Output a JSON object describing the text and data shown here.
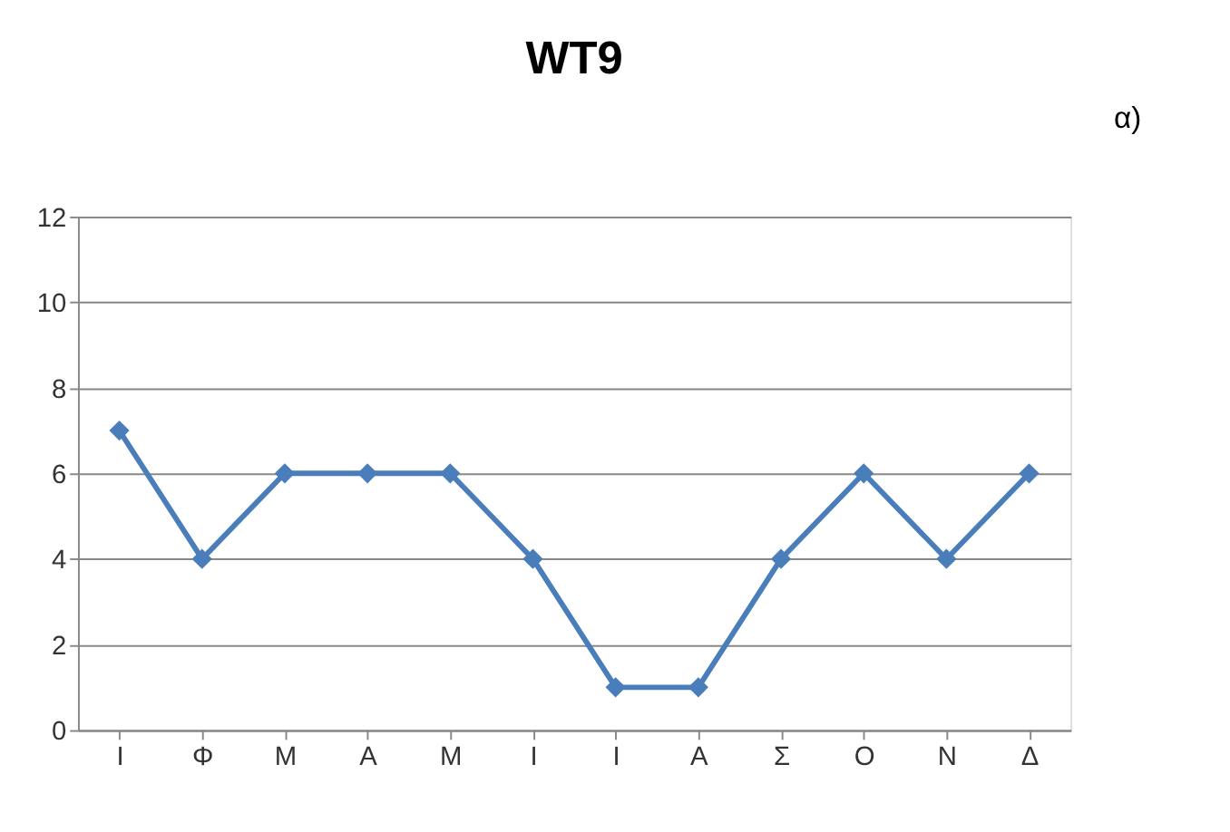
{
  "chart_data": {
    "type": "line",
    "title": "WT9",
    "categories": [
      "Ι",
      "Φ",
      "Μ",
      "Α",
      "Μ",
      "Ι",
      "Ι",
      "Α",
      "Σ",
      "Ο",
      "Ν",
      "Δ"
    ],
    "series": [
      {
        "color": "#4a7ebb",
        "values": [
          7,
          4,
          6,
          6,
          6,
          4,
          1,
          1,
          4,
          6,
          4,
          6
        ]
      }
    ],
    "ylim": [
      0,
      12
    ],
    "yticks": [
      0,
      2,
      4,
      6,
      8,
      10,
      12
    ],
    "grid": "y",
    "marker": "diamond",
    "annotations": [
      "α)"
    ]
  }
}
